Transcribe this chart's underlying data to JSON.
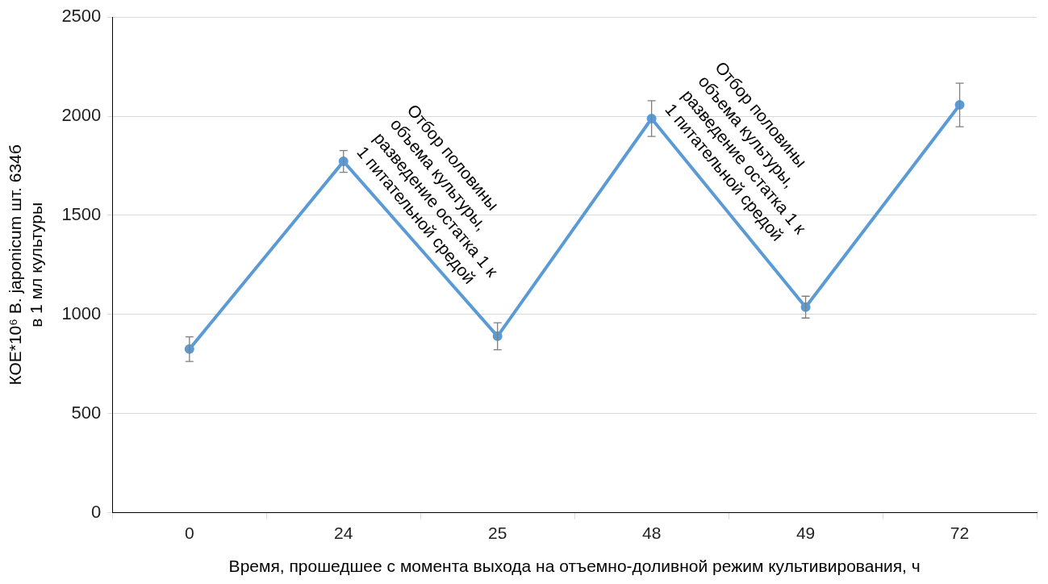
{
  "chart_data": {
    "type": "line",
    "xlabel": "Время, прошедшее с момента выхода на отъемно-доливной режим культивирования, ч",
    "ylabel": "КОЕ*10⁶ B. japonicum шт. 634б\nв 1 мл культуры",
    "categories": [
      "0",
      "24",
      "25",
      "48",
      "49",
      "72"
    ],
    "series": [
      {
        "color": "#5b9bd5",
        "values": [
          825,
          1772,
          890,
          1988,
          1037,
          2057
        ],
        "errors": [
          62,
          55,
          68,
          90,
          55,
          110
        ]
      }
    ],
    "ylim": [
      0,
      2500
    ],
    "yticks": [
      0,
      500,
      1000,
      1500,
      2000,
      2500
    ],
    "grid": "y",
    "marker": "circle",
    "line_style": "solid",
    "legend": false,
    "annotations": [
      {
        "text": "Отбор половины объема культуры, разведение остатка 1 к 1 питательной средой",
        "x": "24",
        "y": 1772
      },
      {
        "text": "Отбор половины объема культуры, разведение остатка 1 к 1 питательной средой",
        "x": "48",
        "y": 1988
      }
    ]
  }
}
